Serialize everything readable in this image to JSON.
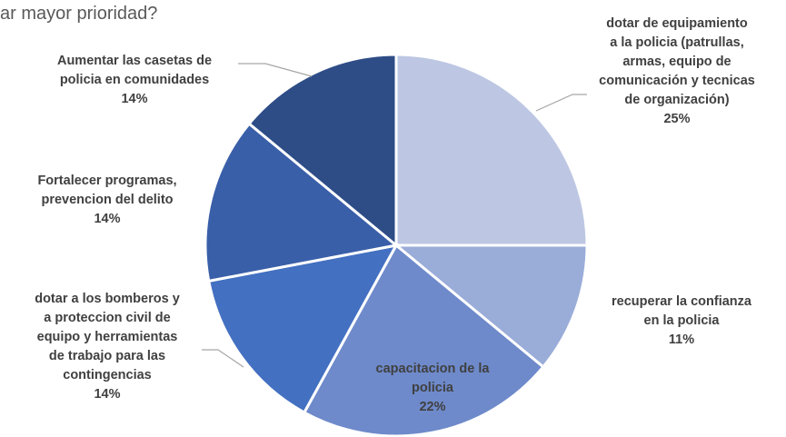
{
  "title": "ar mayor prioridad?",
  "chart_data": {
    "type": "pie",
    "title": "ar mayor prioridad?",
    "slices": [
      {
        "label": [
          "dotar de equipamiento",
          "a la policia (patrullas,",
          "armas, equipo de",
          "comunicación y tecnicas",
          "de organización)"
        ],
        "value": 25,
        "value_label": "25%",
        "color": "#bdc7e3"
      },
      {
        "label": [
          "recuperar la confianza",
          "en la policia"
        ],
        "value": 11,
        "value_label": "11%",
        "color": "#9aacd8"
      },
      {
        "label": [
          "capacitacion de la",
          "policia"
        ],
        "value": 22,
        "value_label": "22%",
        "color": "#6e8acb"
      },
      {
        "label": [
          "dotar a los bomberos y",
          "a proteccion civil de",
          "equipo y herramientas",
          "de trabajo para las",
          "contingencias"
        ],
        "value": 14,
        "value_label": "14%",
        "color": "#4370c1"
      },
      {
        "label": [
          "Fortalecer programas,",
          "prevencion del delito"
        ],
        "value": 14,
        "value_label": "14%",
        "color": "#3a5fa9"
      },
      {
        "label": [
          "Aumentar las casetas de",
          "policia en comunidades"
        ],
        "value": 14,
        "value_label": "14%",
        "color": "#2e4d87"
      }
    ]
  }
}
